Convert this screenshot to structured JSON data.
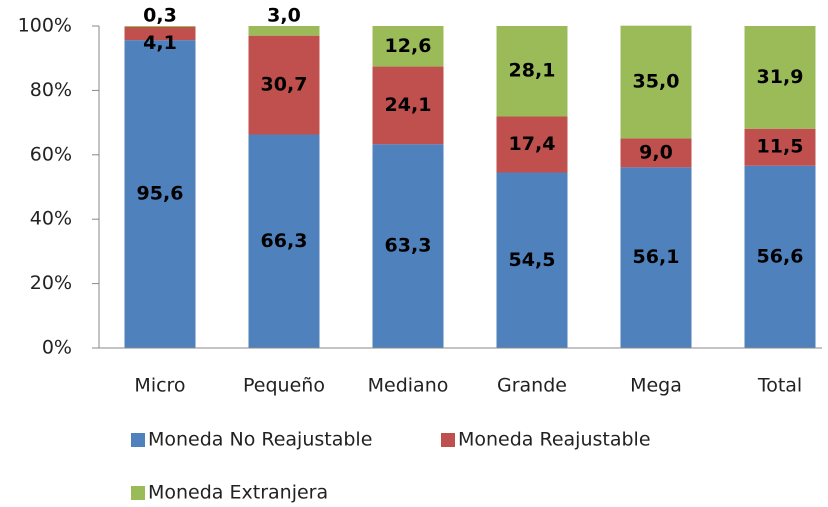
{
  "chart_data": {
    "type": "stacked_bar",
    "categories": [
      "Micro",
      "Pequeño",
      "Mediano",
      "Grande",
      "Mega",
      "Total"
    ],
    "series": [
      {
        "name": "Moneda No Reajustable",
        "color": "#4f81bd",
        "values": [
          95.6,
          66.3,
          63.3,
          54.5,
          56.1,
          56.6
        ],
        "value_labels": [
          "95,6",
          "66,3",
          "63,3",
          "54,5",
          "56,1",
          "56,6"
        ]
      },
      {
        "name": "Moneda Reajustable",
        "color": "#c0504d",
        "values": [
          4.1,
          30.7,
          24.1,
          17.4,
          9.0,
          11.5
        ],
        "value_labels": [
          "4,1",
          "30,7",
          "24,1",
          "17,4",
          "9,0",
          "11,5"
        ]
      },
      {
        "name": "Moneda Extranjera",
        "color": "#9bbb59",
        "values": [
          0.3,
          3.0,
          12.6,
          28.1,
          35.0,
          31.9
        ],
        "value_labels": [
          "0,3",
          "3,0",
          "12,6",
          "28,1",
          "35,0",
          "31,9"
        ]
      }
    ],
    "ylim": [
      0,
      100
    ],
    "yticks": [
      {
        "value": 0,
        "label": "0%"
      },
      {
        "value": 20,
        "label": "20%"
      },
      {
        "value": 40,
        "label": "40%"
      },
      {
        "value": 60,
        "label": "60%"
      },
      {
        "value": 80,
        "label": "80%"
      },
      {
        "value": 100,
        "label": "100%"
      }
    ],
    "grid": false
  }
}
